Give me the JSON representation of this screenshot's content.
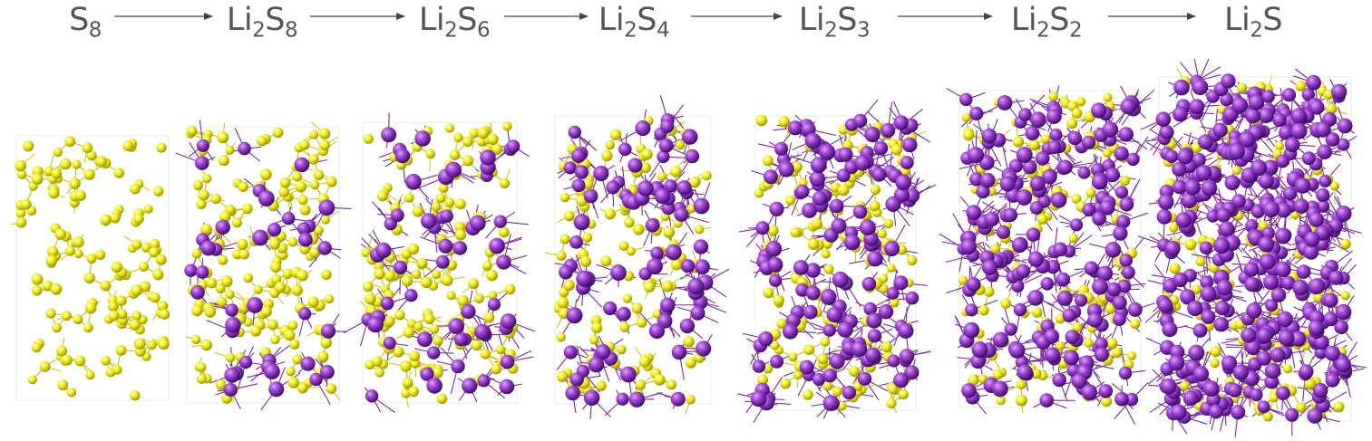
{
  "reaction_sequence": [
    {
      "metal": "",
      "metal_sub": "",
      "nonmetal": "S",
      "nonmetal_sub": "8"
    },
    {
      "metal": "Li",
      "metal_sub": "2",
      "nonmetal": "S",
      "nonmetal_sub": "8"
    },
    {
      "metal": "Li",
      "metal_sub": "2",
      "nonmetal": "S",
      "nonmetal_sub": "6"
    },
    {
      "metal": "Li",
      "metal_sub": "2",
      "nonmetal": "S",
      "nonmetal_sub": "4"
    },
    {
      "metal": "Li",
      "metal_sub": "2",
      "nonmetal": "S",
      "nonmetal_sub": "3"
    },
    {
      "metal": "Li",
      "metal_sub": "2",
      "nonmetal": "S",
      "nonmetal_sub": "2"
    },
    {
      "metal": "Li",
      "metal_sub": "2",
      "nonmetal": "S",
      "nonmetal_sub": ""
    }
  ],
  "colors": {
    "sulfur": "#f2ee1a",
    "sulfur_shade": "#9a9200",
    "lithium": "#9a3fd1",
    "lithium_shade": "#3c0b66",
    "bond_sulfur": "#c8c20c",
    "bond_lithium": "#7a2a9c",
    "label_text": "#555555",
    "arrow": "#444444"
  },
  "snapshots": [
    {
      "formula_index": 0,
      "sulfur_atoms": 130,
      "lithium_atoms": 0
    },
    {
      "formula_index": 1,
      "sulfur_atoms": 150,
      "lithium_atoms": 38
    },
    {
      "formula_index": 2,
      "sulfur_atoms": 150,
      "lithium_atoms": 55
    },
    {
      "formula_index": 3,
      "sulfur_atoms": 120,
      "lithium_atoms": 80
    },
    {
      "formula_index": 4,
      "sulfur_atoms": 150,
      "lithium_atoms": 130
    },
    {
      "formula_index": 5,
      "sulfur_atoms": 130,
      "lithium_atoms": 180
    },
    {
      "formula_index": 6,
      "sulfur_atoms": 130,
      "lithium_atoms": 320
    }
  ]
}
